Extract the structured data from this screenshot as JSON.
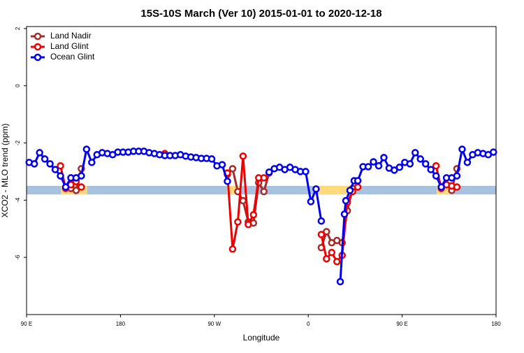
{
  "chart_data": {
    "type": "line",
    "title": "15S-10S March (Ver 10)   2015-01-01 to 2020-12-18",
    "x_label": "Longitude",
    "y_label": "XCO2 - MLO trend (ppm)",
    "xlim": [
      90,
      540
    ],
    "ylim": [
      -8,
      2.07
    ],
    "xticks": [
      {
        "value": 90,
        "label": "90 E"
      },
      180,
      {
        "value": 270,
        "label": "90 W"
      },
      {
        "value": 360,
        "label": "0"
      },
      {
        "value": 450,
        "label": "90 E"
      },
      {
        "value": 540,
        "label": "180"
      }
    ],
    "yticks": [
      -6,
      -4,
      -2,
      0,
      2
    ],
    "legend": "top-left",
    "band": {
      "ylim": [
        -3.8,
        -3.5
      ],
      "color": "#a7c1df",
      "highlights": [
        [
          123,
          148
        ],
        [
          282,
          296
        ],
        [
          369,
          403
        ],
        [
          483,
          498
        ]
      ],
      "highlight_color": "#ffd97a"
    },
    "series": [
      {
        "name": "Land Nadir",
        "color": "#a52a2a",
        "x": [
          127.5,
          132.5,
          137.5,
          142.5,
          210,
          282.5,
          287.5,
          292.5,
          297.5,
          302.5,
          307.5,
          312.5,
          317.5,
          322.5,
          350,
          372.5,
          377.5,
          382.5,
          387.5,
          392.5,
          397.5,
          402.5,
          450,
          487.5,
          492.5,
          497.5,
          502.5
        ],
        "values": [
          -3.54,
          -3.59,
          -3.66,
          -2.9,
          null,
          -3.1,
          -2.9,
          -3.7,
          -4.02,
          -4.76,
          -4.8,
          -3.39,
          -3.7,
          -3.05,
          null,
          -5.66,
          -5.1,
          -5.49,
          -5.41,
          -5.49,
          -4.37,
          -3.59,
          null,
          -3.54,
          -3.46,
          -3.66,
          -2.9
        ]
      },
      {
        "name": "Land Glint",
        "color": "#ee0000",
        "x": [
          122.5,
          127.5,
          132.5,
          137.5,
          142.5,
          180,
          222.5,
          250,
          282.5,
          287.5,
          292.5,
          297.5,
          302.5,
          307.5,
          312.5,
          317.5,
          350,
          372.5,
          377.5,
          382.5,
          387.5,
          392.5,
          397.5,
          402.5,
          407.5,
          450,
          482.5,
          487.5,
          492.5,
          497.5,
          502.5
        ],
        "values": [
          -2.8,
          -3.59,
          -3.46,
          -3.35,
          -3.54,
          null,
          -2.37,
          null,
          -3.05,
          -5.71,
          -4.76,
          -2.46,
          -4.85,
          -4.51,
          -3.22,
          -3.22,
          null,
          -5.2,
          -6.05,
          -5.83,
          -6.15,
          -5.93,
          -4.07,
          -3.7,
          -3.54,
          null,
          -2.8,
          -3.59,
          -3.46,
          -3.5,
          -3.54
        ]
      },
      {
        "name": "Ocean Glint",
        "color": "#0000ee",
        "x": [
          92.5,
          97.5,
          102.5,
          107.5,
          112.5,
          117.5,
          122.5,
          127.5,
          132.5,
          137.5,
          142.5,
          147.5,
          152.5,
          157.5,
          162.5,
          167.5,
          172.5,
          177.5,
          182.5,
          187.5,
          192.5,
          197.5,
          202.5,
          207.5,
          212.5,
          217.5,
          222.5,
          227.5,
          232.5,
          237.5,
          242.5,
          247.5,
          252.5,
          257.5,
          262.5,
          267.5,
          272.5,
          277.5,
          282.5,
          300,
          322.5,
          327.5,
          332.5,
          337.5,
          342.5,
          347.5,
          352.5,
          357.5,
          362.5,
          367.5,
          372.5,
          380,
          390.7,
          394.7,
          396,
          400,
          404,
          407.5,
          412.5,
          417.5,
          422.5,
          427.5,
          432.5,
          437.5,
          442.5,
          447.5,
          452.5,
          457.5,
          462.5,
          467.5,
          472.5,
          477.5,
          482.5,
          487.5,
          492.5,
          497.5,
          502.5,
          507.5,
          512.5,
          517.5,
          522.5,
          527.5,
          532.5,
          537.5
        ],
        "values": [
          -2.68,
          -2.73,
          -2.34,
          -2.56,
          -2.73,
          -2.93,
          -3.15,
          -3.54,
          -3.22,
          -3.22,
          -3.15,
          -2.22,
          -2.68,
          -2.41,
          -2.34,
          -2.37,
          -2.41,
          -2.32,
          -2.32,
          -2.32,
          -2.29,
          -2.29,
          -2.29,
          -2.34,
          -2.37,
          -2.41,
          -2.44,
          -2.44,
          -2.44,
          -2.41,
          -2.46,
          -2.49,
          -2.51,
          -2.54,
          -2.54,
          -2.56,
          -2.8,
          -2.76,
          -3.34,
          null,
          -3.02,
          -2.9,
          -2.85,
          -2.93,
          -2.85,
          -2.93,
          -3.0,
          -3.0,
          -4.05,
          -3.61,
          -4.73,
          null,
          -6.85,
          -4.49,
          -4.02,
          -3.66,
          -3.32,
          -3.32,
          -2.83,
          -2.83,
          -2.66,
          -2.8,
          -2.51,
          -2.88,
          -2.95,
          -2.85,
          -2.68,
          -2.73,
          -2.34,
          -2.56,
          -2.73,
          -2.93,
          -3.15,
          -3.54,
          -3.22,
          -3.22,
          -3.15,
          -2.22,
          -2.68,
          -2.41,
          -2.34,
          -2.37,
          -2.41,
          -2.32
        ]
      }
    ]
  }
}
